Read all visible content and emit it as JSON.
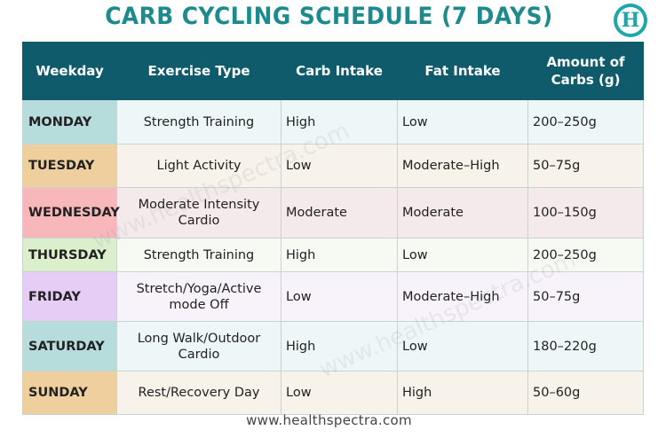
{
  "title": "CARB CYCLING SCHEDULE (7 DAYS)",
  "logo_letter": "H",
  "watermark_text": "www.healthspectra.com",
  "footer_text": "www.healthspectra.com",
  "headers": {
    "weekday": "Weekday",
    "exercise": "Exercise Type",
    "carb": "Carb Intake",
    "fat": "Fat Intake",
    "amount_line1": "Amount of",
    "amount_line2": "Carbs (g)"
  },
  "rows": [
    {
      "day": "MONDAY",
      "exercise_l1": "Strength Training",
      "exercise_l2": "",
      "carb": "High",
      "fat": "Low",
      "amount": "200–250g",
      "day_color": "#b6dcdc",
      "row_color": "#eef7f8"
    },
    {
      "day": "TUESDAY",
      "exercise_l1": "Light Activity",
      "exercise_l2": "",
      "carb": "Low",
      "fat": "Moderate–High",
      "amount": "50–75g",
      "day_color": "#efcf9e",
      "row_color": "#f7f2ea"
    },
    {
      "day": "WEDNESDAY",
      "exercise_l1": "Moderate Intensity",
      "exercise_l2": "Cardio",
      "carb": "Moderate",
      "fat": "Moderate",
      "amount": "100–150g",
      "day_color": "#f7b7bb",
      "row_color": "#f5eaeb"
    },
    {
      "day": "THURSDAY",
      "exercise_l1": "Strength Training",
      "exercise_l2": "",
      "carb": "High",
      "fat": "Low",
      "amount": "200–250g",
      "day_color": "#dcefcc",
      "row_color": "#f6faf2"
    },
    {
      "day": "FRIDAY",
      "exercise_l1": "Stretch/Yoga/Active",
      "exercise_l2": "mode Off",
      "carb": "Low",
      "fat": "Moderate–High",
      "amount": "50–75g",
      "day_color": "#e6cdf6",
      "row_color": "#f8f2fb"
    },
    {
      "day": "SATURDAY",
      "exercise_l1": "Long Walk/Outdoor",
      "exercise_l2": "Cardio",
      "carb": "High",
      "fat": "Low",
      "amount": "180–220g",
      "day_color": "#b6dcdc",
      "row_color": "#eef7f8"
    },
    {
      "day": "SUNDAY",
      "exercise_l1": "Rest/Recovery Day",
      "exercise_l2": "",
      "carb": "Low",
      "fat": "High",
      "amount": "50–60g",
      "day_color": "#efcf9e",
      "row_color": "#f7f2ea"
    }
  ]
}
